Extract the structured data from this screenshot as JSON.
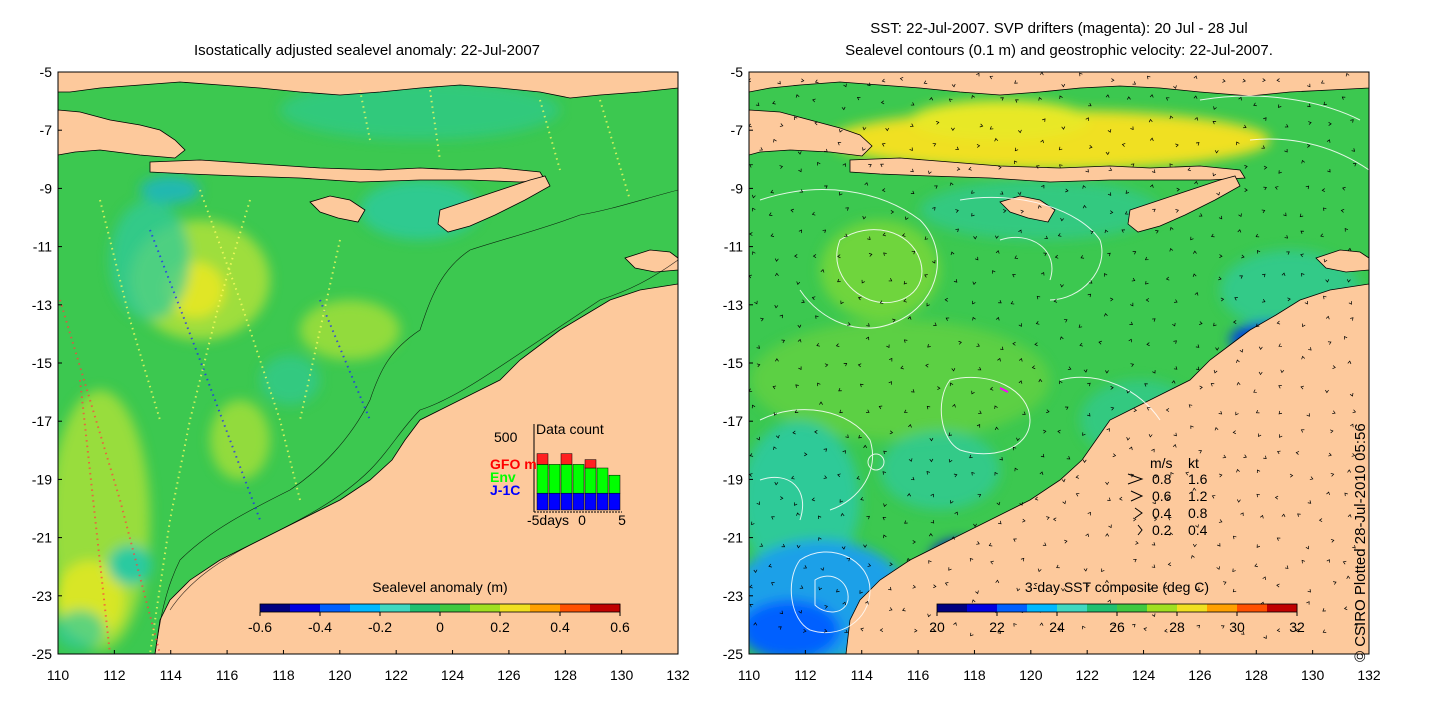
{
  "left_panel": {
    "title": "Isostatically adjusted sealevel anomaly: 22-Jul-2007",
    "colorbar": {
      "label": "Sealevel anomaly (m)",
      "ticks": [
        "-0.6",
        "-0.4",
        "-0.2",
        "0",
        "0.2",
        "0.4",
        "0.6"
      ],
      "colors": [
        "#000080",
        "#0000e0",
        "#0060ff",
        "#00b8ff",
        "#40d8c0",
        "#20c070",
        "#40c840",
        "#a0e020",
        "#f0e020",
        "#ffa000",
        "#ff5000",
        "#c00000"
      ]
    },
    "data_count": {
      "title": "Data count",
      "y_max_label": "500",
      "series": [
        {
          "label": "GFO mm",
          "color": "#ff0000"
        },
        {
          "label": "Env",
          "color": "#00ff00"
        },
        {
          "label": "J-1C",
          "color": "#0000ff"
        }
      ],
      "x_labels": [
        "-5days",
        "0",
        "5"
      ],
      "bars": [
        {
          "j1c": 0.28,
          "env": 0.48,
          "gfo": 0.18
        },
        {
          "j1c": 0.28,
          "env": 0.48,
          "gfo": 0.0
        },
        {
          "j1c": 0.28,
          "env": 0.48,
          "gfo": 0.18
        },
        {
          "j1c": 0.28,
          "env": 0.48,
          "gfo": 0.0
        },
        {
          "j1c": 0.28,
          "env": 0.42,
          "gfo": 0.14
        },
        {
          "j1c": 0.28,
          "env": 0.42,
          "gfo": 0.0
        },
        {
          "j1c": 0.28,
          "env": 0.3,
          "gfo": 0.0
        }
      ]
    }
  },
  "right_panel": {
    "title_line1": "SST: 22-Jul-2007. SVP drifters (magenta): 20 Jul - 28 Jul",
    "title_line2": "Sealevel contours (0.1 m) and geostrophic velocity: 22-Jul-2007.",
    "colorbar": {
      "label": "3-day SST composite (deg C)",
      "ticks": [
        "20",
        "22",
        "24",
        "26",
        "28",
        "30",
        "32"
      ],
      "colors": [
        "#000080",
        "#0000e0",
        "#0060ff",
        "#00b8ff",
        "#40d8c0",
        "#20c070",
        "#40c840",
        "#a0e020",
        "#f0e020",
        "#ffa000",
        "#ff5000",
        "#c00000"
      ]
    },
    "velocity_legend": {
      "header_ms": "m/s",
      "header_kt": "kt",
      "rows": [
        {
          "ms": "0.8",
          "kt": "1.6"
        },
        {
          "ms": "0.6",
          "kt": "1.2"
        },
        {
          "ms": "0.4",
          "kt": "0.8"
        },
        {
          "ms": "0.2",
          "kt": "0.4"
        }
      ]
    }
  },
  "axes": {
    "lon_labels": [
      "110",
      "112",
      "114",
      "116",
      "118",
      "120",
      "122",
      "124",
      "126",
      "128",
      "130",
      "132"
    ],
    "lat_labels": [
      "-5",
      "-7",
      "-9",
      "-11",
      "-13",
      "-15",
      "-17",
      "-19",
      "-21",
      "-23",
      "-25"
    ]
  },
  "credit": "© CSIRO Plotted 28-Jul-2010 05:56",
  "colors": {
    "land": "#fdc99c",
    "ocean_green": "#3cc850",
    "ocean_teal": "#2ccaa0",
    "ocean_yellow": "#c8e630",
    "ocean_blue": "#1aa0e8"
  }
}
